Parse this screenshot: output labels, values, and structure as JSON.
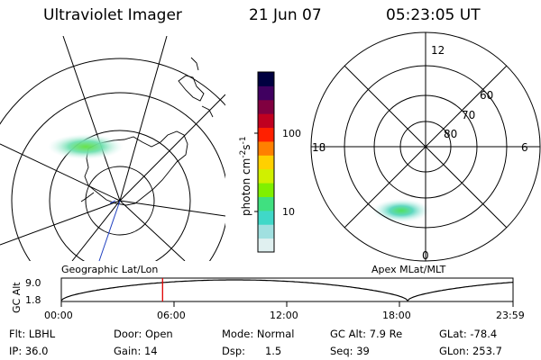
{
  "header": {
    "instrument": "Ultraviolet Imager",
    "date": "21 Jun 07",
    "time": "05:23:05 UT"
  },
  "colorbar": {
    "unit_label": "photon cm-2s-1",
    "unit_base": "photon cm",
    "unit_exp1": "-2",
    "unit_mid": "s",
    "unit_exp2": "-1",
    "tick_100": "100",
    "tick_10": "10",
    "colors": [
      "#e0f0f0",
      "#a0e0e0",
      "#40d8c8",
      "#40e080",
      "#80f000",
      "#d0f000",
      "#ffd000",
      "#ff8000",
      "#ff2000",
      "#c00020",
      "#800040",
      "#400060",
      "#000040"
    ]
  },
  "geographic_map": {
    "label": "Geographic Lat/Lon"
  },
  "apex_map": {
    "label": "Apex MLat/MLT",
    "mlt_labels": {
      "top": "12",
      "left": "18",
      "right": "6",
      "bottom": "0"
    },
    "lat_labels": [
      "60",
      "70",
      "80"
    ]
  },
  "altitude_plot": {
    "ylabel": "GC Alt",
    "yticks": [
      "9.0",
      "1.8"
    ],
    "xticks": [
      "00:00",
      "06:00",
      "12:00",
      "18:00",
      "23:59"
    ],
    "marker_time_hours": 5.38,
    "marker_color": "#e00000"
  },
  "status": {
    "filter": "Flt: LBHL",
    "ip": "IP: 36.0",
    "door": "Door: Open",
    "gain": "Gain: 14",
    "mode": "Mode: Normal",
    "dsp": "Dsp:      1.5",
    "gc_alt": "GC Alt: 7.9 Re",
    "seq": "Seq: 39",
    "glat": "GLat: -78.4",
    "glon": "GLon: 253.7"
  }
}
